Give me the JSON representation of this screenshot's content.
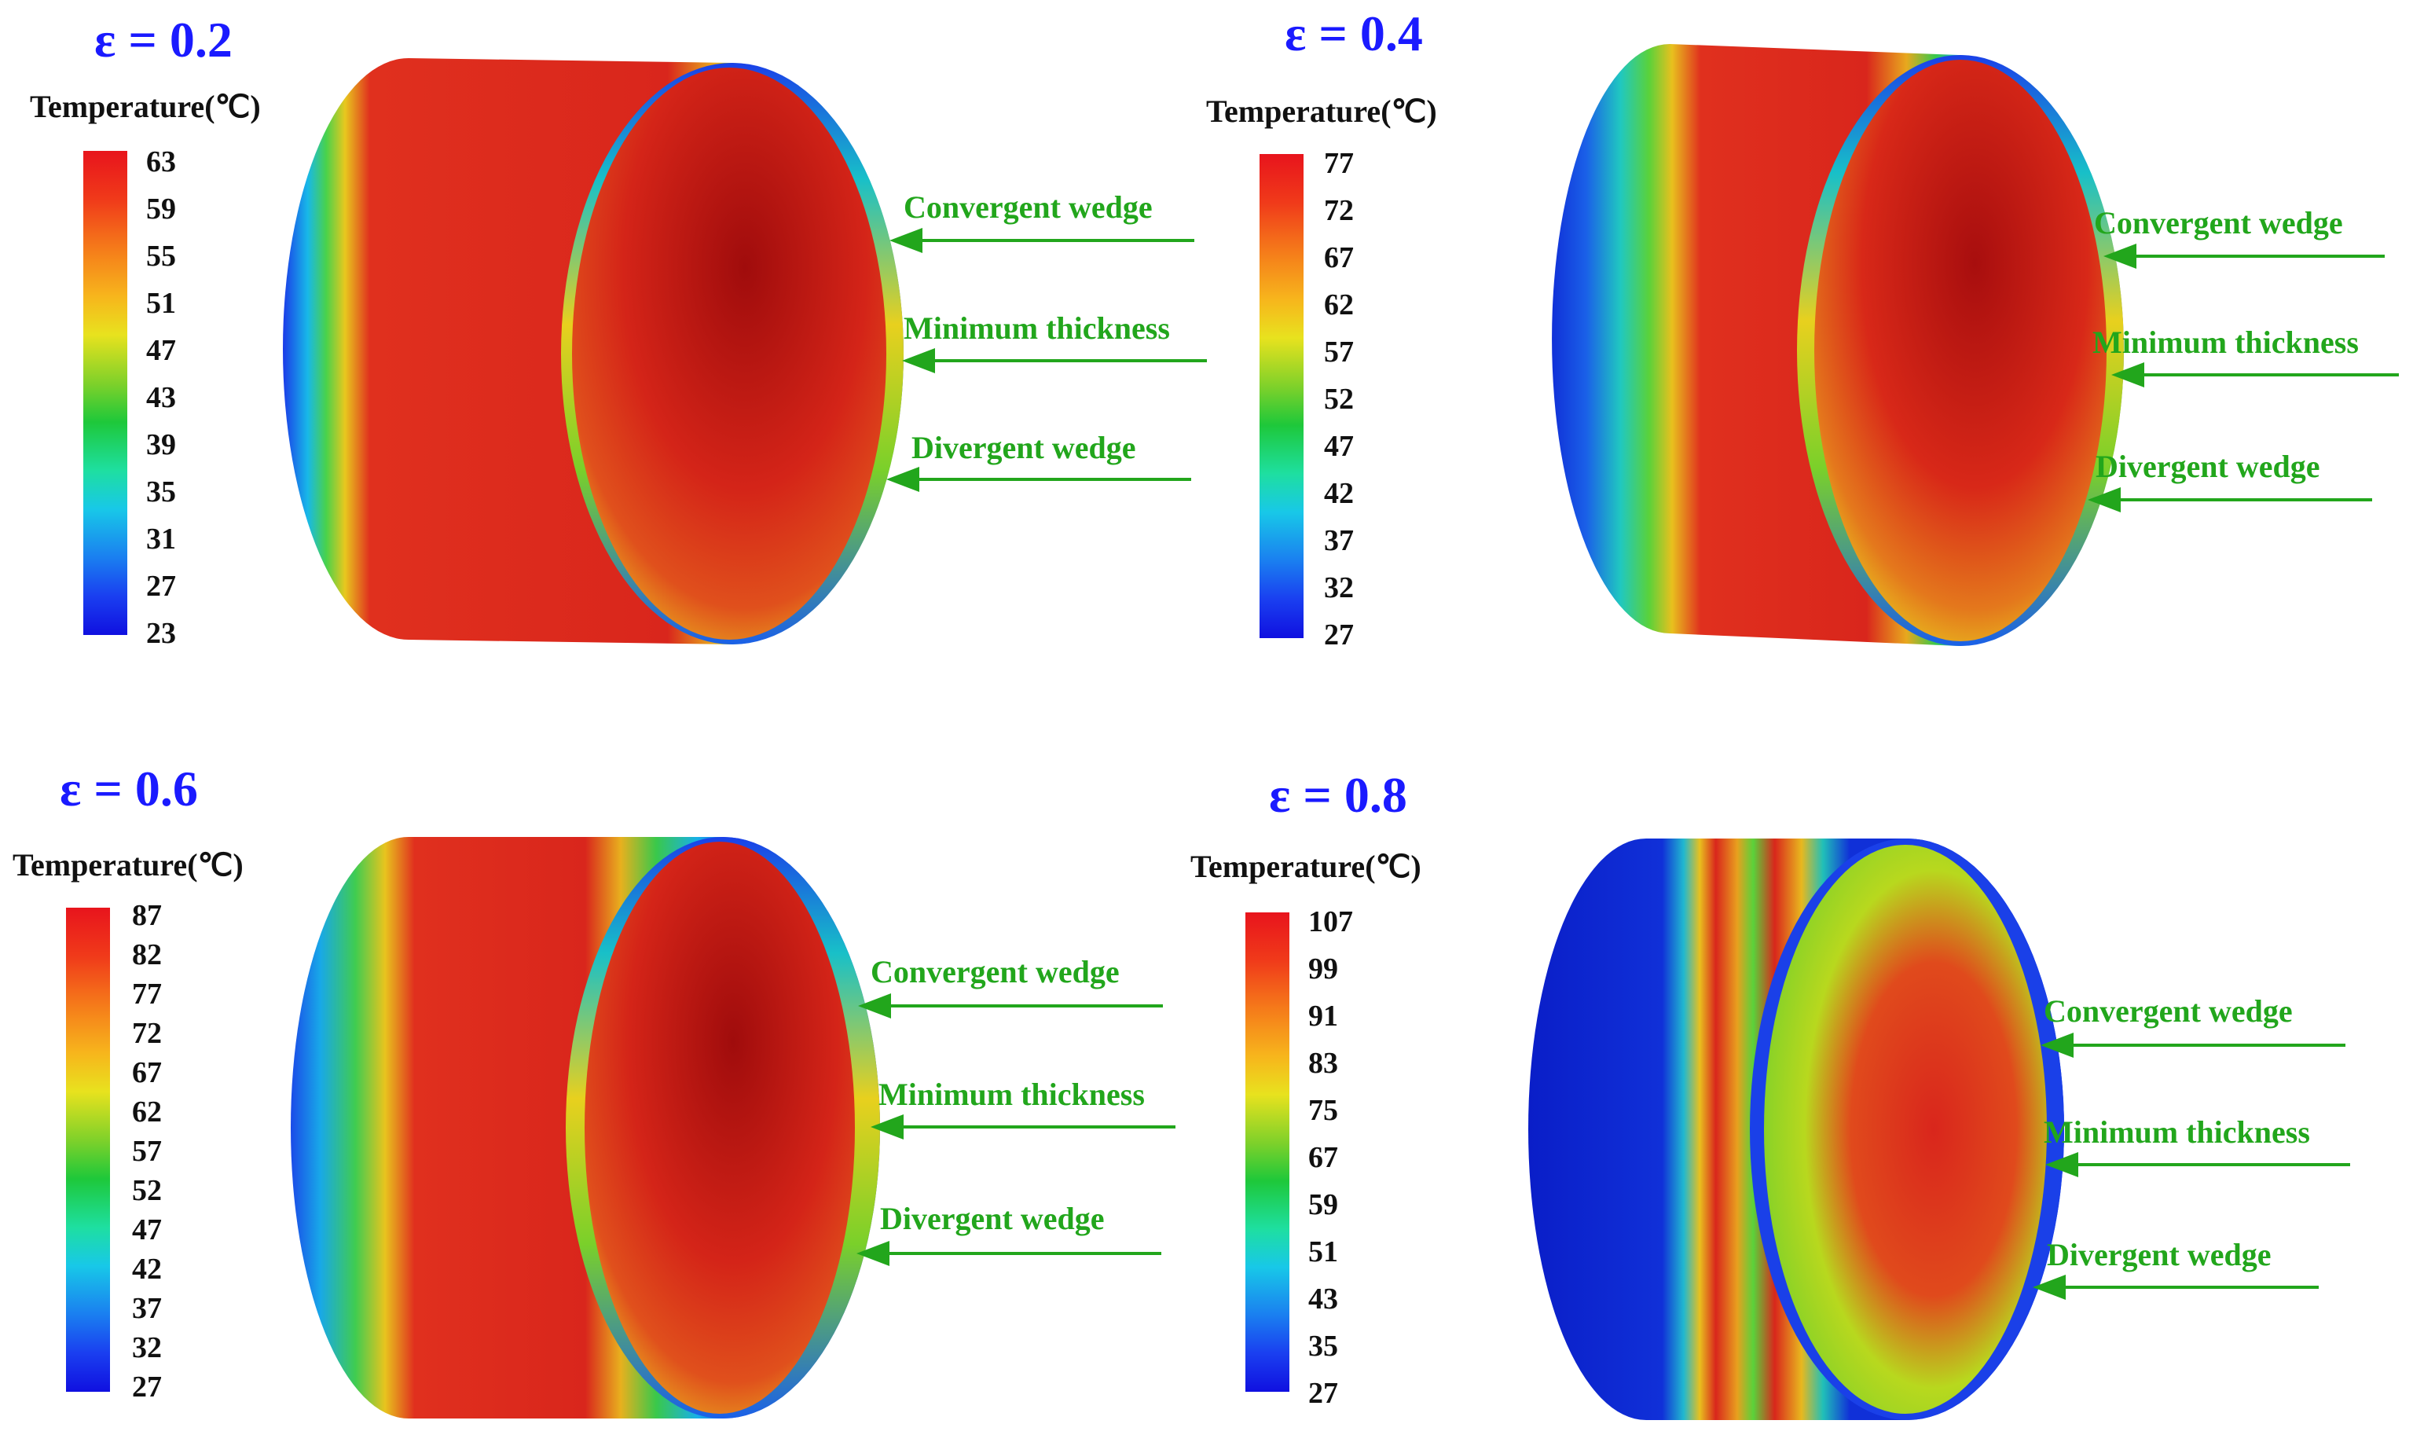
{
  "legend_title": "Temperature(℃)",
  "labels": {
    "convergent": "Convergent wedge",
    "minimum": "Minimum thickness",
    "divergent": "Divergent wedge"
  },
  "panels": [
    {
      "eps": "ε = 0.2",
      "ticks": [
        "63",
        "59",
        "55",
        "51",
        "47",
        "43",
        "39",
        "35",
        "31",
        "27",
        "23"
      ]
    },
    {
      "eps": "ε = 0.4",
      "ticks": [
        "77",
        "72",
        "67",
        "62",
        "57",
        "52",
        "47",
        "42",
        "37",
        "32",
        "27"
      ]
    },
    {
      "eps": "ε = 0.6",
      "ticks": [
        "87",
        "82",
        "77",
        "72",
        "67",
        "62",
        "57",
        "52",
        "47",
        "42",
        "37",
        "32",
        "27"
      ]
    },
    {
      "eps": "ε = 0.8",
      "ticks": [
        "107",
        "99",
        "91",
        "83",
        "75",
        "67",
        "59",
        "51",
        "43",
        "35",
        "27"
      ]
    }
  ],
  "colors": {
    "eps": "#1a1aff",
    "arrow": "#22a61c"
  }
}
